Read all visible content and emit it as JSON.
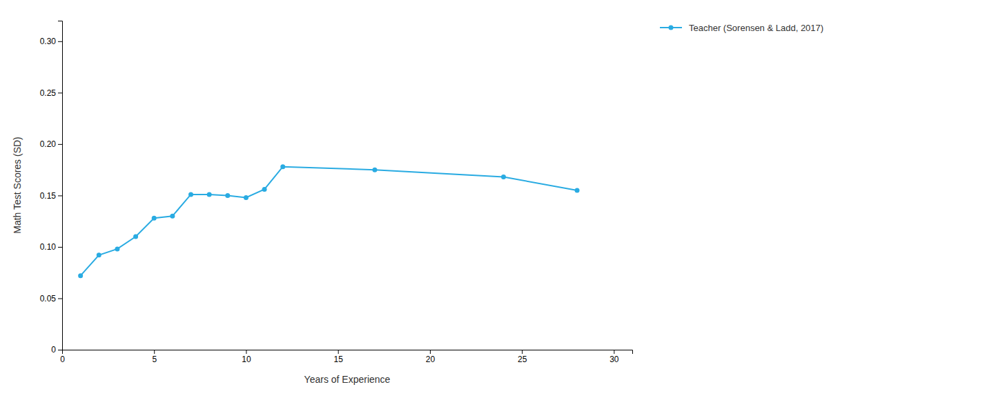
{
  "chart_data": {
    "type": "line",
    "x": [
      1,
      2,
      3,
      4,
      5,
      6,
      7,
      8,
      9,
      10,
      11,
      12,
      17,
      24,
      28
    ],
    "series": [
      {
        "name": "Teacher (Sorensen & Ladd, 2017)",
        "color": "#29ABE2",
        "marker": "circle",
        "values": [
          0.072,
          0.092,
          0.098,
          0.11,
          0.128,
          0.13,
          0.151,
          0.151,
          0.15,
          0.148,
          0.156,
          0.178,
          0.175,
          0.168,
          0.155
        ]
      }
    ],
    "xlabel": "Years of Experience",
    "ylabel": "Math Test Scores (SD)",
    "xlim": [
      0,
      31
    ],
    "ylim": [
      0,
      0.32
    ],
    "xticks": [
      0,
      5,
      10,
      15,
      20,
      25,
      30
    ],
    "yticks": [
      0,
      0.05,
      {
        "value": 0.1,
        "label": "0.10"
      },
      0.15,
      {
        "value": 0.2,
        "label": "0.20"
      },
      0.25,
      {
        "value": 0.3,
        "label": "0.30"
      }
    ],
    "grid": false,
    "legend": "right"
  }
}
